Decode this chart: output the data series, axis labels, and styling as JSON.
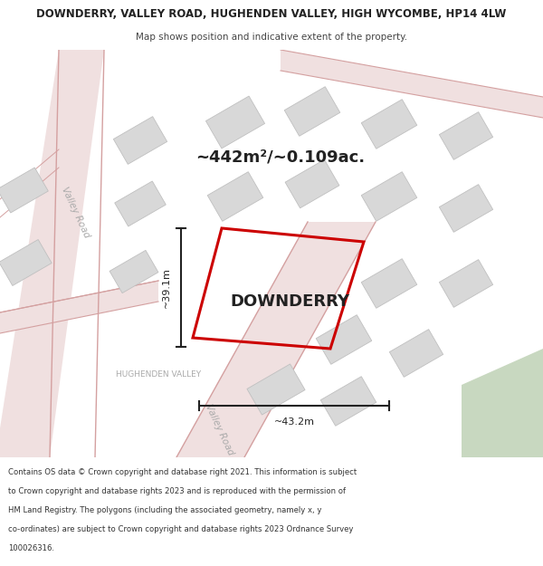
{
  "title_line1": "DOWNDERRY, VALLEY ROAD, HUGHENDEN VALLEY, HIGH WYCOMBE, HP14 4LW",
  "title_line2": "Map shows position and indicative extent of the property.",
  "area_label": "~442m²/~0.109ac.",
  "property_label": "DOWNDERRY",
  "dim_vertical": "~39.1m",
  "dim_horizontal": "~43.2m",
  "label_valley_road_upper": "Valley Road",
  "label_valley_road_lower": "Valley Road",
  "label_hughenden": "HUGHENDEN VALLEY",
  "footer_line1": "Contains OS data © Crown copyright and database right 2021. This information is subject",
  "footer_line2": "to Crown copyright and database rights 2023 and is reproduced with the permission of",
  "footer_line3": "HM Land Registry. The polygons (including the associated geometry, namely x, y",
  "footer_line4": "co-ordinates) are subject to Crown copyright and database rights 2023 Ordnance Survey",
  "footer_line5": "100026316.",
  "map_bg": "#f7f4f4",
  "road_fill": "#f0e0e0",
  "road_edge": "#d4a0a0",
  "plot_color": "#cc0000",
  "block_color": "#d8d8d8",
  "block_edge": "#c0c0c0",
  "green_color": "#c8d8c0",
  "dim_color": "#222222",
  "text_dark": "#222222",
  "text_mid": "#888888",
  "text_light": "#bbbbbb",
  "header_bg": "#ffffff",
  "footer_bg": "#ffffff"
}
